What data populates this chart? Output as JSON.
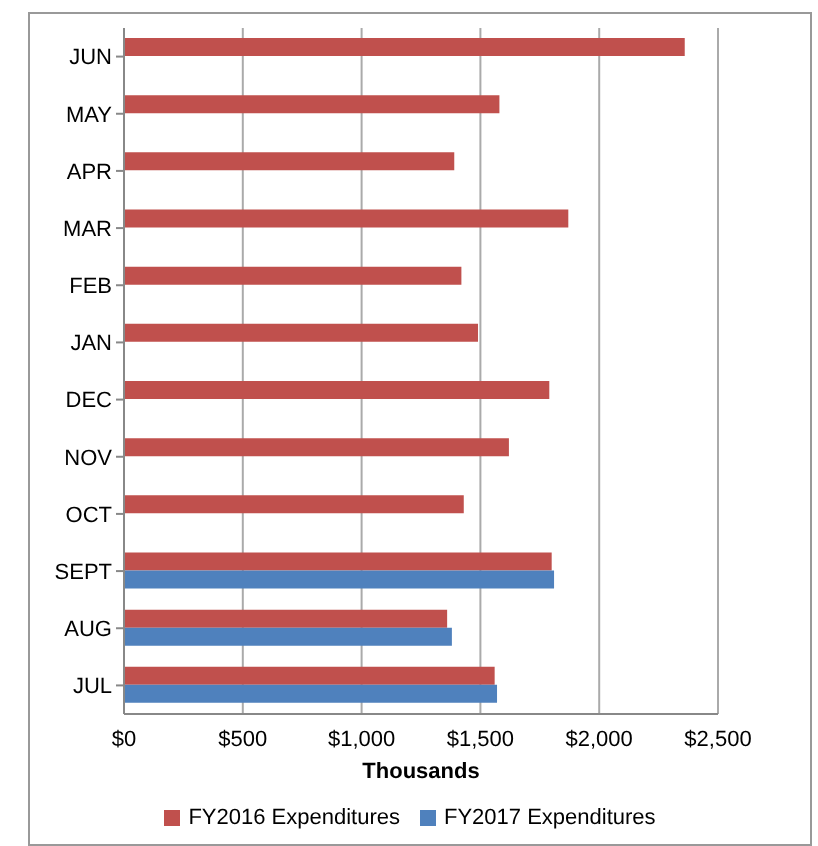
{
  "chart_data": {
    "type": "bar",
    "orientation": "horizontal",
    "categories": [
      "JUN",
      "MAY",
      "APR",
      "MAR",
      "FEB",
      "JAN",
      "DEC",
      "NOV",
      "OCT",
      "SEPT",
      "AUG",
      "JUL"
    ],
    "series": [
      {
        "name": "FY2016 Expenditures",
        "color": "#c0504d",
        "values": [
          2360,
          1580,
          1390,
          1870,
          1420,
          1490,
          1790,
          1620,
          1430,
          1800,
          1360,
          1560
        ]
      },
      {
        "name": "FY2017 Expenditures",
        "color": "#4f81bd",
        "values": [
          null,
          null,
          null,
          null,
          null,
          null,
          null,
          null,
          null,
          1810,
          1380,
          1570
        ]
      }
    ],
    "xlim": [
      0,
      2500
    ],
    "xticks": [
      {
        "value": 0,
        "label": "$0"
      },
      {
        "value": 500,
        "label": "$500"
      },
      {
        "value": 1000,
        "label": "$1,000"
      },
      {
        "value": 1500,
        "label": "$1,500"
      },
      {
        "value": 2000,
        "label": "$2,000"
      },
      {
        "value": 2500,
        "label": "$2,500"
      }
    ],
    "xlabel": "Thousands",
    "grid": "x",
    "legend": "bottom"
  }
}
